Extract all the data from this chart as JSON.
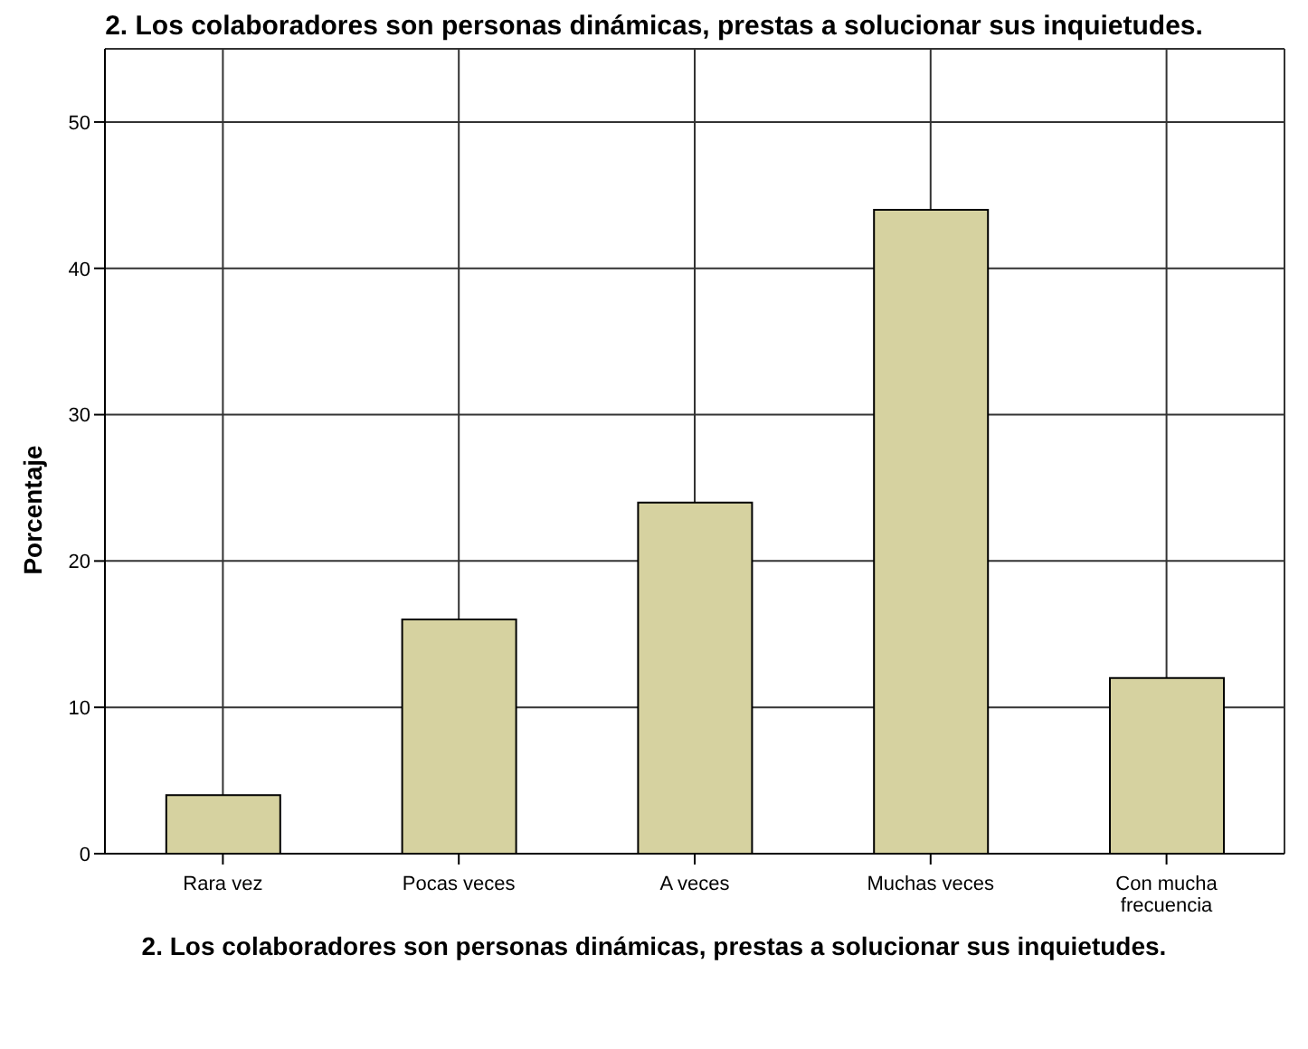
{
  "chart_data": {
    "type": "bar",
    "title": "2. Los colaboradores son personas dinámicas, prestas a solucionar sus inquietudes.",
    "xlabel": "2. Los colaboradores son personas dinámicas, prestas a solucionar sus inquietudes.",
    "ylabel": "Porcentaje",
    "categories": [
      "Rara vez",
      "Pocas veces",
      "A veces",
      "Muchas veces",
      "Con mucha frecuencia"
    ],
    "values": [
      4,
      16,
      24,
      44,
      12
    ],
    "color": "#d6d2a0",
    "ylim": [
      0,
      55
    ],
    "yticks": [
      0,
      10,
      20,
      30,
      40,
      50
    ],
    "grid": true
  }
}
